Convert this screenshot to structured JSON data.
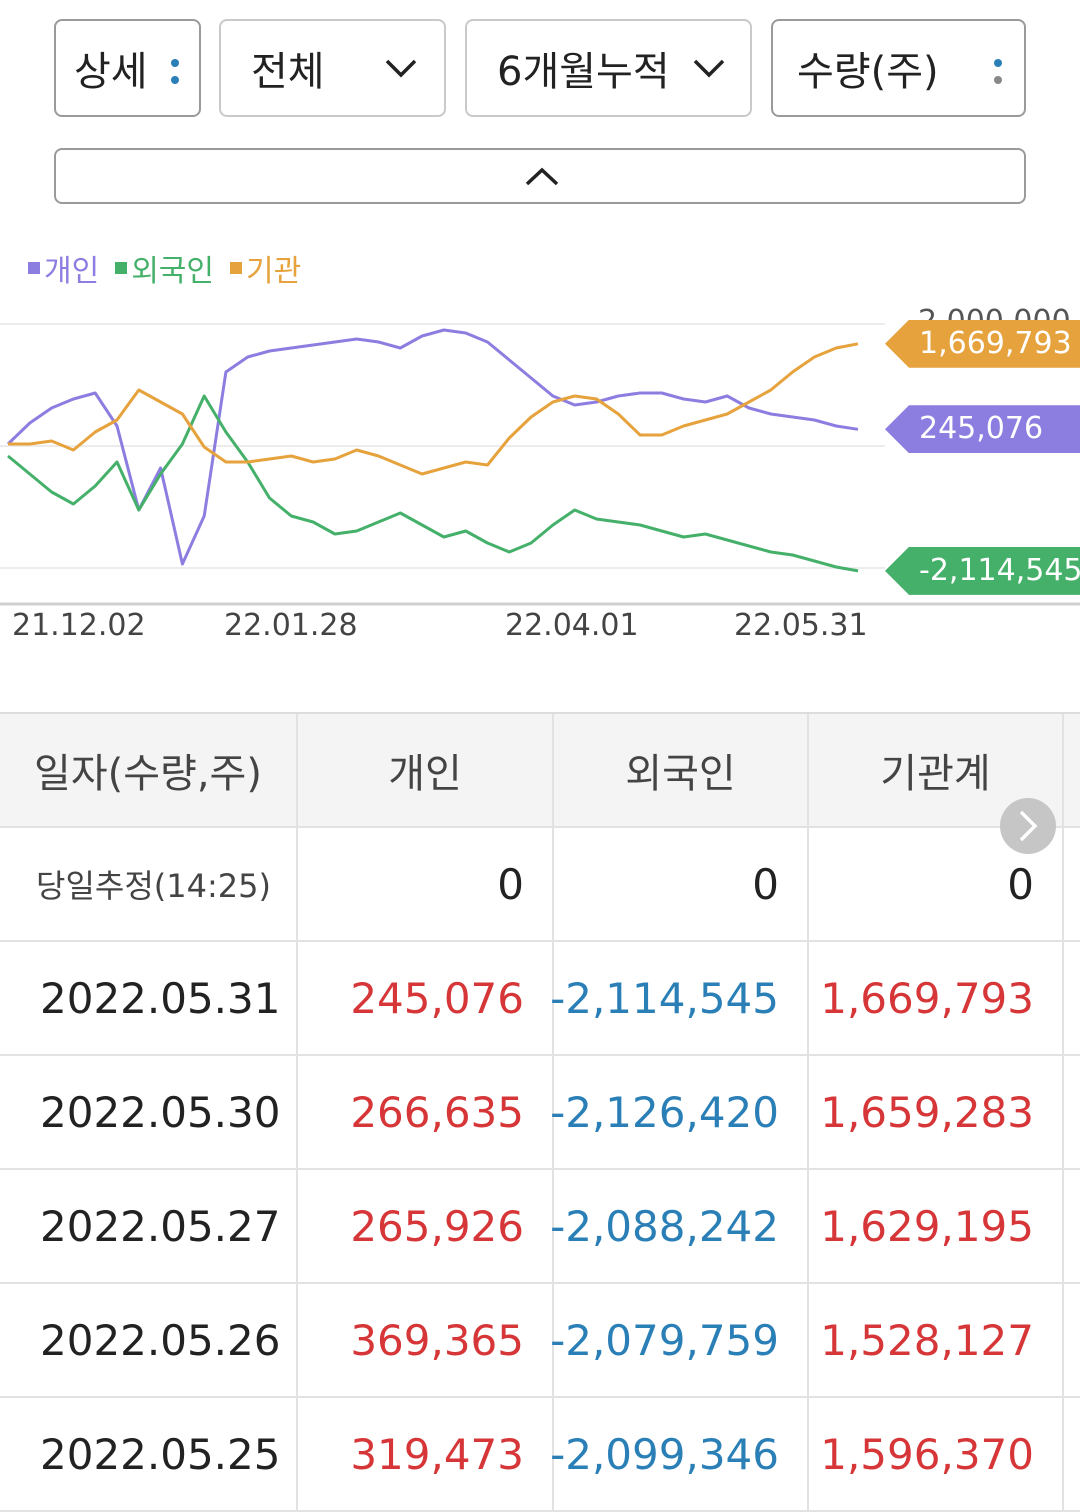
{
  "filters": {
    "detail": "상세",
    "scope": "전체",
    "period": "6개월누적",
    "unit": "수량(주)"
  },
  "colors": {
    "individual": "#8c7ee0",
    "foreign": "#45b06a",
    "institution": "#e6a23c",
    "positive": "#d63638",
    "negative": "#2a7fb6"
  },
  "icons": {
    "dropdown": "chevron-down-icon",
    "menu": "vertical-dots-icon",
    "collapse": "chevron-up-icon",
    "scroll": "chevron-right-icon"
  },
  "legend": [
    "개인",
    "외국인",
    "기관"
  ],
  "chart_data": {
    "type": "line",
    "x_ticks": [
      "21.12.02",
      "22.01.28",
      "22.04.01",
      "22.05.31"
    ],
    "y_top_tick": "2,000,000",
    "ylim": [
      -2600000,
      2000000
    ],
    "grid": true,
    "series": [
      {
        "name": "개인",
        "end_label": "245,076",
        "values": [
          0,
          350000,
          600000,
          750000,
          850000,
          300000,
          -1100000,
          -400000,
          -2000000,
          -1200000,
          1200000,
          1450000,
          1550000,
          1600000,
          1650000,
          1700000,
          1750000,
          1700000,
          1600000,
          1800000,
          1900000,
          1850000,
          1700000,
          1400000,
          1100000,
          800000,
          650000,
          700000,
          800000,
          850000,
          850000,
          750000,
          700000,
          800000,
          600000,
          500000,
          450000,
          400000,
          300000,
          245076
        ]
      },
      {
        "name": "외국인",
        "end_label": "-2,114,545",
        "values": [
          -200000,
          -500000,
          -800000,
          -1000000,
          -700000,
          -300000,
          -1100000,
          -500000,
          0,
          800000,
          200000,
          -300000,
          -900000,
          -1200000,
          -1300000,
          -1500000,
          -1450000,
          -1300000,
          -1150000,
          -1350000,
          -1550000,
          -1450000,
          -1650000,
          -1800000,
          -1650000,
          -1350000,
          -1100000,
          -1250000,
          -1300000,
          -1350000,
          -1450000,
          -1550000,
          -1500000,
          -1600000,
          -1700000,
          -1800000,
          -1850000,
          -1950000,
          -2050000,
          -2114545
        ]
      },
      {
        "name": "기관",
        "end_label": "1,669,793",
        "values": [
          0,
          0,
          50000,
          -100000,
          200000,
          400000,
          900000,
          700000,
          500000,
          -50000,
          -300000,
          -300000,
          -250000,
          -200000,
          -300000,
          -250000,
          -100000,
          -200000,
          -350000,
          -500000,
          -400000,
          -300000,
          -350000,
          100000,
          450000,
          700000,
          800000,
          750000,
          500000,
          150000,
          150000,
          300000,
          400000,
          500000,
          700000,
          900000,
          1200000,
          1450000,
          1600000,
          1669793
        ]
      }
    ]
  },
  "table": {
    "headers": [
      "일자(수량,주)",
      "개인",
      "외국인",
      "기관계"
    ],
    "estimate": {
      "label": "당일추정(14:25)",
      "individual": "0",
      "foreign": "0",
      "institution": "0"
    },
    "rows": [
      {
        "date": "2022.05.31",
        "individual": "245,076",
        "foreign": "-2,114,545",
        "institution": "1,669,793"
      },
      {
        "date": "2022.05.30",
        "individual": "266,635",
        "foreign": "-2,126,420",
        "institution": "1,659,283"
      },
      {
        "date": "2022.05.27",
        "individual": "265,926",
        "foreign": "-2,088,242",
        "institution": "1,629,195"
      },
      {
        "date": "2022.05.26",
        "individual": "369,365",
        "foreign": "-2,079,759",
        "institution": "1,528,127"
      },
      {
        "date": "2022.05.25",
        "individual": "319,473",
        "foreign": "-2,099,346",
        "institution": "1,596,370"
      }
    ]
  }
}
